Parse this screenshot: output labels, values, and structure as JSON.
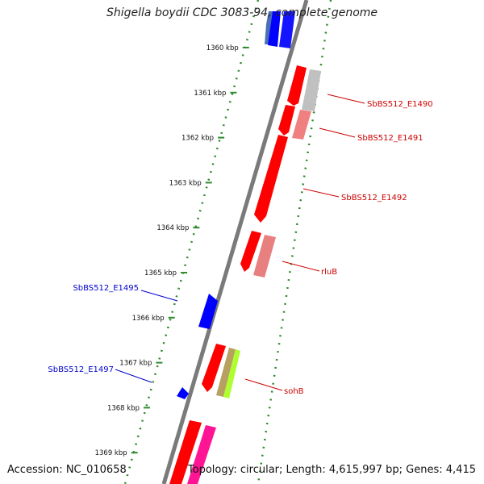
{
  "title": "Shigella boydii CDC 3083-94, complete genome",
  "accession_text": "Accession: NC_010658",
  "summary_text": "Topology: circular; Length: 4,615,997 bp; Genes: 4,415",
  "colors": {
    "backbone": "#7a7a7a",
    "gc_dots": "#2e8b2e",
    "forward_red": "#ff0000",
    "reverse_blue": "#0000ff",
    "label_red": "#cc0000",
    "label_blue": "#0000cc"
  },
  "ticks": [
    {
      "label": "1360 kbp"
    },
    {
      "label": "1361 kbp"
    },
    {
      "label": "1362 kbp"
    },
    {
      "label": "1363 kbp"
    },
    {
      "label": "1364 kbp"
    },
    {
      "label": "1365 kbp"
    },
    {
      "label": "1366 kbp"
    },
    {
      "label": "1367 kbp"
    },
    {
      "label": "1368 kbp"
    },
    {
      "label": "1369 kbp"
    }
  ],
  "genes": [
    {
      "name": "SbBS512_E1490",
      "strand": "forward"
    },
    {
      "name": "SbBS512_E1491",
      "strand": "forward"
    },
    {
      "name": "SbBS512_E1492",
      "strand": "forward"
    },
    {
      "name": "rluB",
      "strand": "forward"
    },
    {
      "name": "SbBS512_E1495",
      "strand": "reverse"
    },
    {
      "name": "SbBS512_E1497",
      "strand": "reverse"
    },
    {
      "name": "sohB",
      "strand": "forward"
    }
  ]
}
